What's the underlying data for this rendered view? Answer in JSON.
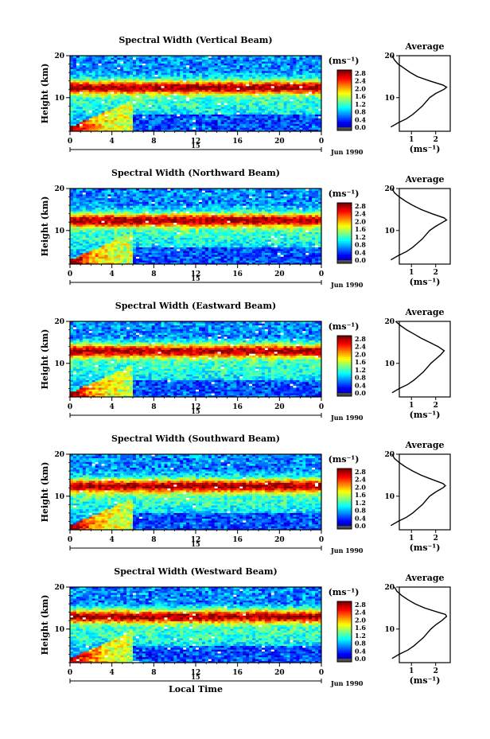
{
  "figure": {
    "shared_xlabel": "Local Time",
    "date_label": "Jun 1990",
    "date_day": "15",
    "cbar_unit": "(ms⁻¹)",
    "avg_title": "Average",
    "avg_xlabel": "(ms⁻¹)"
  },
  "chart_data": [
    {
      "type": "heatmap",
      "title": "Spectral Width (Vertical Beam)",
      "xlabel": "",
      "ylabel": "Height (km)",
      "x_ticks": [
        "0",
        "4",
        "8",
        "12",
        "16",
        "20",
        "0"
      ],
      "y_ticks": [
        "10",
        "20"
      ],
      "xlim": [
        0,
        24
      ],
      "ylim": [
        2,
        20
      ],
      "colorbar": {
        "unit": "(ms⁻¹)",
        "ticks": [
          "2.8",
          "2.4",
          "2.0",
          "1.6",
          "1.2",
          "0.8",
          "0.4",
          "0.0"
        ],
        "range": [
          0,
          2.8
        ]
      },
      "jet_peak_km": 12.5,
      "average_profile": {
        "title": "Average",
        "x_ticks": [
          "1",
          "2"
        ],
        "y_ticks": [
          "10",
          "20"
        ],
        "xlabel": "(ms⁻¹)",
        "height": [
          3,
          4,
          5,
          6,
          7,
          8,
          9,
          10,
          11,
          12,
          12.5,
          13,
          14,
          15,
          16,
          17,
          18,
          19,
          20
        ],
        "width": [
          0.15,
          0.45,
          0.8,
          1.05,
          1.25,
          1.45,
          1.6,
          1.75,
          2.0,
          2.35,
          2.45,
          2.3,
          1.75,
          1.25,
          0.95,
          0.7,
          0.45,
          0.3,
          0.2
        ]
      }
    },
    {
      "type": "heatmap",
      "title": "Spectral Width (Northward Beam)",
      "xlabel": "",
      "ylabel": "Height (km)",
      "x_ticks": [
        "0",
        "4",
        "8",
        "12",
        "16",
        "20",
        "0"
      ],
      "y_ticks": [
        "10",
        "20"
      ],
      "xlim": [
        0,
        24
      ],
      "ylim": [
        2,
        20
      ],
      "colorbar": {
        "unit": "(ms⁻¹)",
        "ticks": [
          "2.8",
          "2.4",
          "2.0",
          "1.6",
          "1.2",
          "0.8",
          "0.4",
          "0.0"
        ],
        "range": [
          0,
          2.8
        ]
      },
      "jet_peak_km": 12.5,
      "average_profile": {
        "title": "Average",
        "x_ticks": [
          "1",
          "2"
        ],
        "y_ticks": [
          "10",
          "20"
        ],
        "xlabel": "(ms⁻¹)",
        "height": [
          3,
          4,
          5,
          6,
          7,
          8,
          9,
          10,
          11,
          12,
          12.5,
          13,
          14,
          15,
          16,
          17,
          18,
          19,
          20
        ],
        "width": [
          0.15,
          0.45,
          0.8,
          1.05,
          1.25,
          1.45,
          1.6,
          1.75,
          2.0,
          2.3,
          2.45,
          2.35,
          1.85,
          1.4,
          1.05,
          0.75,
          0.5,
          0.3,
          0.2
        ]
      }
    },
    {
      "type": "heatmap",
      "title": "Spectral Width (Eastward Beam)",
      "xlabel": "",
      "ylabel": "Height (km)",
      "x_ticks": [
        "0",
        "4",
        "8",
        "12",
        "16",
        "20",
        "0"
      ],
      "y_ticks": [
        "10",
        "20"
      ],
      "xlim": [
        0,
        24
      ],
      "ylim": [
        2,
        20
      ],
      "colorbar": {
        "unit": "(ms⁻¹)",
        "ticks": [
          "2.8",
          "2.4",
          "2.0",
          "1.6",
          "1.2",
          "0.8",
          "0.4",
          "0.0"
        ],
        "range": [
          0,
          2.8
        ]
      },
      "jet_peak_km": 13,
      "average_profile": {
        "title": "Average",
        "x_ticks": [
          "1",
          "2"
        ],
        "y_ticks": [
          "10",
          "20"
        ],
        "xlabel": "(ms⁻¹)",
        "height": [
          3,
          4,
          5,
          6,
          7,
          8,
          9,
          10,
          11,
          12,
          13,
          14,
          15,
          16,
          17,
          18,
          19,
          20
        ],
        "width": [
          0.2,
          0.5,
          0.85,
          1.1,
          1.3,
          1.5,
          1.65,
          1.8,
          2.0,
          2.2,
          2.35,
          2.1,
          1.75,
          1.4,
          1.1,
          0.8,
          0.55,
          0.35
        ]
      }
    },
    {
      "type": "heatmap",
      "title": "Spectral Width (Southward Beam)",
      "xlabel": "",
      "ylabel": "Height (km)",
      "x_ticks": [
        "0",
        "4",
        "8",
        "12",
        "16",
        "20",
        "0"
      ],
      "y_ticks": [
        "10",
        "20"
      ],
      "xlim": [
        0,
        24
      ],
      "ylim": [
        2,
        20
      ],
      "colorbar": {
        "unit": "(ms⁻¹)",
        "ticks": [
          "2.8",
          "2.4",
          "2.0",
          "1.6",
          "1.2",
          "0.8",
          "0.4",
          "0.0"
        ],
        "range": [
          0,
          2.8
        ]
      },
      "jet_peak_km": 12.5,
      "average_profile": {
        "title": "Average",
        "x_ticks": [
          "1",
          "2"
        ],
        "y_ticks": [
          "10",
          "20"
        ],
        "xlabel": "(ms⁻¹)",
        "height": [
          3,
          4,
          5,
          6,
          7,
          8,
          9,
          10,
          11,
          12,
          12.5,
          13,
          14,
          15,
          16,
          17,
          18,
          19,
          20
        ],
        "width": [
          0.15,
          0.45,
          0.8,
          1.05,
          1.25,
          1.45,
          1.6,
          1.75,
          2.0,
          2.3,
          2.4,
          2.3,
          1.85,
          1.4,
          1.05,
          0.75,
          0.5,
          0.3,
          0.2
        ]
      }
    },
    {
      "type": "heatmap",
      "title": "Spectral Width (Westward Beam)",
      "xlabel": "Local Time",
      "ylabel": "Height (km)",
      "x_ticks": [
        "0",
        "4",
        "8",
        "12",
        "16",
        "20",
        "0"
      ],
      "y_ticks": [
        "10",
        "20"
      ],
      "xlim": [
        0,
        24
      ],
      "ylim": [
        2,
        20
      ],
      "colorbar": {
        "unit": "(ms⁻¹)",
        "ticks": [
          "2.8",
          "2.4",
          "2.0",
          "1.6",
          "1.2",
          "0.8",
          "0.4",
          "0.0"
        ],
        "range": [
          0,
          2.8
        ]
      },
      "jet_peak_km": 13,
      "average_profile": {
        "title": "Average",
        "x_ticks": [
          "1",
          "2"
        ],
        "y_ticks": [
          "10",
          "20"
        ],
        "xlabel": "(ms⁻¹)",
        "height": [
          3,
          4,
          5,
          6,
          7,
          8,
          9,
          10,
          11,
          12,
          13,
          13.5,
          14,
          15,
          16,
          17,
          18,
          19,
          20
        ],
        "width": [
          0.2,
          0.5,
          0.85,
          1.1,
          1.3,
          1.5,
          1.65,
          1.8,
          2.0,
          2.25,
          2.45,
          2.4,
          2.1,
          1.55,
          1.15,
          0.85,
          0.6,
          0.4,
          0.3
        ]
      }
    }
  ]
}
